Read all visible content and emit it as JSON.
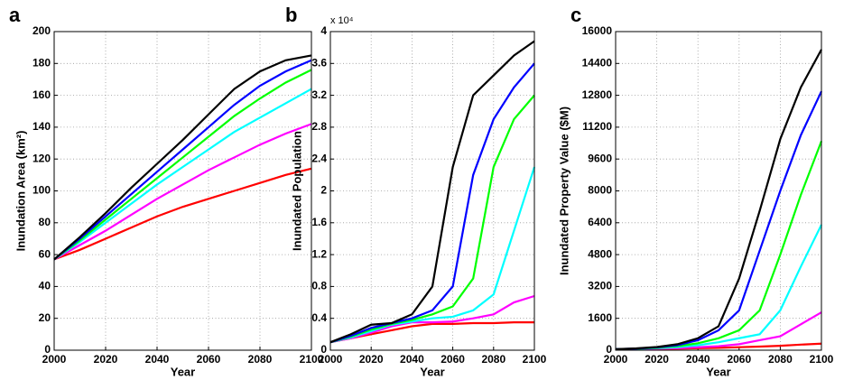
{
  "chart_data": [
    {
      "type": "line",
      "panel_label": "a",
      "x_label": "Year",
      "y_label": "Inundation Area (km²)",
      "x": [
        2000,
        2010,
        2020,
        2030,
        2040,
        2050,
        2060,
        2070,
        2080,
        2090,
        2100
      ],
      "xlim": [
        2000,
        2100
      ],
      "xticks": [
        2000,
        2020,
        2040,
        2060,
        2080,
        2100
      ],
      "ylim": [
        0,
        200
      ],
      "yticks": [
        0,
        20,
        40,
        60,
        80,
        100,
        120,
        140,
        160,
        180,
        200
      ],
      "grid": true,
      "series": [
        {
          "color": "#ff0000",
          "values": [
            57,
            63,
            70,
            77,
            84,
            90,
            95,
            100,
            105,
            110,
            114
          ]
        },
        {
          "color": "#ff00ff",
          "values": [
            57,
            66,
            75,
            85,
            95,
            104,
            113,
            121,
            129,
            136,
            142
          ]
        },
        {
          "color": "#00ffff",
          "values": [
            57,
            68,
            80,
            92,
            104,
            115,
            126,
            137,
            146,
            155,
            164
          ]
        },
        {
          "color": "#00ff00",
          "values": [
            57,
            69,
            82,
            95,
            108,
            121,
            134,
            147,
            158,
            168,
            176
          ]
        },
        {
          "color": "#0000ff",
          "values": [
            57,
            70,
            84,
            98,
            112,
            126,
            140,
            154,
            166,
            175,
            182
          ]
        },
        {
          "color": "#000000",
          "values": [
            57,
            71,
            86,
            102,
            117,
            132,
            148,
            164,
            175,
            182,
            185
          ]
        }
      ]
    },
    {
      "type": "line",
      "panel_label": "b",
      "x_label": "Year",
      "y_label": "Inundated Population",
      "axis_multiplier": "x 10⁴",
      "x": [
        2000,
        2010,
        2020,
        2030,
        2040,
        2050,
        2060,
        2070,
        2080,
        2090,
        2100
      ],
      "xlim": [
        2000,
        2100
      ],
      "xticks": [
        2000,
        2020,
        2040,
        2060,
        2080,
        2100
      ],
      "ylim": [
        0,
        4
      ],
      "yticks": [
        0,
        0.4,
        0.8,
        1.2,
        1.6,
        2,
        2.4,
        2.8,
        3.2,
        3.6,
        4
      ],
      "grid": true,
      "series": [
        {
          "color": "#ff0000",
          "values": [
            0.1,
            0.15,
            0.2,
            0.25,
            0.3,
            0.33,
            0.33,
            0.34,
            0.34,
            0.35,
            0.35
          ]
        },
        {
          "color": "#ff00ff",
          "values": [
            0.1,
            0.15,
            0.22,
            0.3,
            0.35,
            0.35,
            0.36,
            0.4,
            0.45,
            0.6,
            0.68
          ]
        },
        {
          "color": "#00ffff",
          "values": [
            0.1,
            0.16,
            0.24,
            0.32,
            0.36,
            0.4,
            0.42,
            0.5,
            0.7,
            1.5,
            2.3
          ]
        },
        {
          "color": "#00ff00",
          "values": [
            0.1,
            0.17,
            0.26,
            0.33,
            0.38,
            0.45,
            0.55,
            0.9,
            2.3,
            2.9,
            3.2
          ]
        },
        {
          "color": "#0000ff",
          "values": [
            0.1,
            0.18,
            0.28,
            0.34,
            0.4,
            0.5,
            0.8,
            2.2,
            2.9,
            3.3,
            3.6
          ]
        },
        {
          "color": "#000000",
          "values": [
            0.1,
            0.2,
            0.32,
            0.34,
            0.45,
            0.8,
            2.3,
            3.2,
            3.45,
            3.7,
            3.88
          ]
        }
      ]
    },
    {
      "type": "line",
      "panel_label": "c",
      "x_label": "Year",
      "y_label": "Inundated Property Value ($M)",
      "x": [
        2000,
        2010,
        2020,
        2030,
        2040,
        2050,
        2060,
        2070,
        2080,
        2090,
        2100
      ],
      "xlim": [
        2000,
        2100
      ],
      "xticks": [
        2000,
        2020,
        2040,
        2060,
        2080,
        2100
      ],
      "ylim": [
        0,
        16000
      ],
      "yticks": [
        0,
        1600,
        3200,
        4800,
        6400,
        8000,
        9600,
        11200,
        12800,
        14400,
        16000
      ],
      "grid": true,
      "series": [
        {
          "color": "#ff0000",
          "values": [
            50,
            55,
            70,
            80,
            100,
            120,
            150,
            180,
            220,
            280,
            330
          ]
        },
        {
          "color": "#ff00ff",
          "values": [
            50,
            60,
            80,
            100,
            150,
            200,
            300,
            500,
            700,
            1300,
            1900
          ]
        },
        {
          "color": "#00ffff",
          "values": [
            50,
            70,
            100,
            150,
            250,
            400,
            600,
            800,
            2000,
            4200,
            6300
          ]
        },
        {
          "color": "#00ff00",
          "values": [
            50,
            70,
            120,
            200,
            350,
            600,
            1000,
            2000,
            4800,
            7800,
            10500
          ]
        },
        {
          "color": "#0000ff",
          "values": [
            50,
            80,
            140,
            250,
            500,
            1000,
            2000,
            5000,
            8000,
            10800,
            13000
          ]
        },
        {
          "color": "#000000",
          "values": [
            50,
            90,
            160,
            300,
            600,
            1200,
            3600,
            7000,
            10600,
            13200,
            15100
          ]
        }
      ]
    }
  ]
}
